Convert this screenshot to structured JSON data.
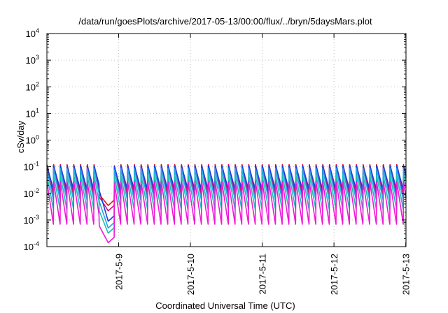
{
  "chart_data": {
    "type": "line",
    "title": "/data/run/goesPlots/archive/2017-05-13/00:00/flux/../bryn/5daysMars.plot",
    "xlabel": "Coordinated Universal Time (UTC)",
    "ylabel": "cSv/day",
    "yscale": "log",
    "ylim": [
      0.0001,
      10000
    ],
    "y_ticks": [
      {
        "value": 0.0001,
        "base": "10",
        "exp": "-4"
      },
      {
        "value": 0.001,
        "base": "10",
        "exp": "-3"
      },
      {
        "value": 0.01,
        "base": "10",
        "exp": "-2"
      },
      {
        "value": 0.1,
        "base": "10",
        "exp": "-1"
      },
      {
        "value": 1,
        "base": "10",
        "exp": "0"
      },
      {
        "value": 10,
        "base": "10",
        "exp": "1"
      },
      {
        "value": 100,
        "base": "10",
        "exp": "2"
      },
      {
        "value": 1000,
        "base": "10",
        "exp": "3"
      },
      {
        "value": 10000,
        "base": "10",
        "exp": "4"
      }
    ],
    "xlim": [
      "2017-05-08T00:00",
      "2017-05-13T00:05"
    ],
    "x_ticks": [
      "2017-5-9",
      "2017-5-10",
      "2017-5-11",
      "2017-5-12",
      "2017-5-13"
    ],
    "grid": true,
    "dip": {
      "start": "2017-05-08T17:30",
      "bottom": "2017-05-08T20:30",
      "end": "2017-05-08T22:30",
      "trough_values": [
        0.0035,
        0.0022,
        0.0009,
        0.0005,
        0.00032,
        0.00014
      ]
    },
    "sawtooth_period_hours": 2.25,
    "series": [
      {
        "color": "#ee1111",
        "peak": 0.12,
        "trough": 0.009
      },
      {
        "color": "#c8107e",
        "peak": 0.115,
        "trough": 0.0075
      },
      {
        "color": "#1a3fe0",
        "peak": 0.11,
        "trough": 0.013
      },
      {
        "color": "#2aa3e8",
        "peak": 0.085,
        "trough": 0.005
      },
      {
        "color": "#18c2b4",
        "peak": 0.05,
        "trough": 0.0022
      },
      {
        "color": "#f018d8",
        "peak": 0.028,
        "trough": 0.0006
      }
    ]
  }
}
